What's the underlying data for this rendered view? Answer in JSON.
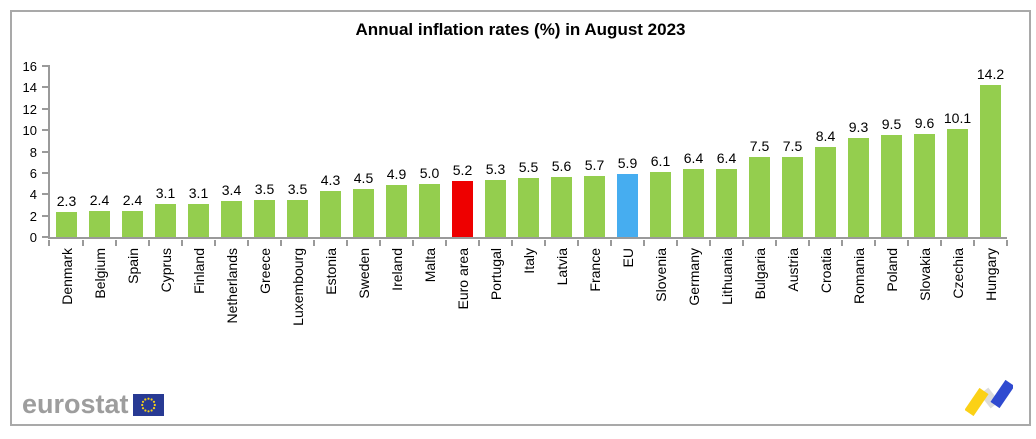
{
  "chart_data": {
    "type": "bar",
    "title": "Annual inflation rates (%) in August 2023",
    "categories": [
      "Denmark",
      "Belgium",
      "Spain",
      "Cyprus",
      "Finland",
      "Netherlands",
      "Greece",
      "Luxembourg",
      "Estonia",
      "Sweden",
      "Ireland",
      "Malta",
      "Euro area",
      "Portugal",
      "Italy",
      "Latvia",
      "France",
      "EU",
      "Slovenia",
      "Germany",
      "Lithuania",
      "Bulgaria",
      "Austria",
      "Croatia",
      "Romania",
      "Poland",
      "Slovakia",
      "Czechia",
      "Hungary"
    ],
    "values": [
      2.3,
      2.4,
      2.4,
      3.1,
      3.1,
      3.4,
      3.5,
      3.5,
      4.3,
      4.5,
      4.9,
      5.0,
      5.2,
      5.3,
      5.5,
      5.6,
      5.7,
      5.9,
      6.1,
      6.4,
      6.4,
      7.5,
      7.5,
      8.4,
      9.3,
      9.5,
      9.6,
      10.1,
      14.2
    ],
    "value_labels": [
      "2.3",
      "2.4",
      "2.4",
      "3.1",
      "3.1",
      "3.4",
      "3.5",
      "3.5",
      "4.3",
      "4.5",
      "4.9",
      "5.0",
      "5.2",
      "5.3",
      "5.5",
      "5.6",
      "5.7",
      "5.9",
      "6.1",
      "6.4",
      "6.4",
      "7.5",
      "7.5",
      "8.4",
      "9.3",
      "9.5",
      "9.6",
      "10.1",
      "14.2"
    ],
    "xlabel": "",
    "ylabel": "",
    "ylim": [
      0,
      16
    ],
    "yticks": [
      0,
      2,
      4,
      6,
      8,
      10,
      12,
      14,
      16
    ],
    "grid": false,
    "legend": false,
    "bar_color_default": "#94ce4e",
    "highlight": {
      "Euro area": "#ee0000",
      "EU": "#46adf0"
    }
  },
  "footer": {
    "brand": "eurostat",
    "flag_color": "#283a93",
    "star_color": "#f7d117",
    "mark_colors": {
      "yellow": "#fbd116",
      "gray": "#dcdcdc",
      "blue": "#2f4ad0"
    }
  },
  "colors": {
    "axis": "#9a9a9a",
    "frame_border": "#a9a9a9",
    "text": "#000000",
    "brand_text": "#9d9d9d"
  }
}
